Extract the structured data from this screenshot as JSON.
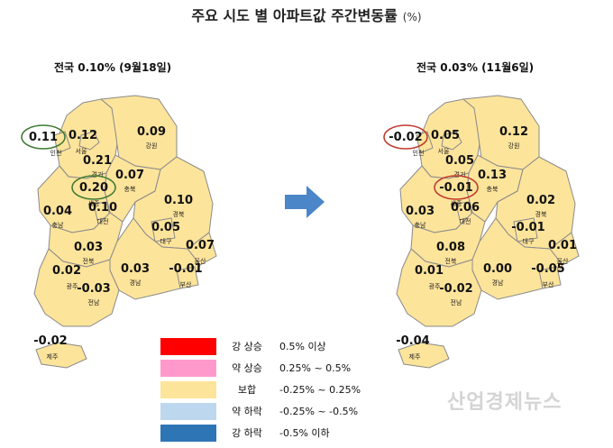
{
  "title": "주요 시도 별 아파트값 주간변동률",
  "title_unit": "(%)",
  "left_map": {
    "subtitle": "전국 0.10% (9월18일)",
    "regions": [
      {
        "region": "인천",
        "value": "0.11",
        "highlight": "green"
      },
      {
        "region": "서울",
        "value": "0.12"
      },
      {
        "region": "경기",
        "value": "0.21"
      },
      {
        "region": "강원",
        "value": "0.09"
      },
      {
        "region": "충북",
        "value": "0.07"
      },
      {
        "region": "세종",
        "value": "0.20",
        "highlight": "green"
      },
      {
        "region": "충남",
        "value": "0.04"
      },
      {
        "region": "대전",
        "value": "0.10"
      },
      {
        "region": "경북",
        "value": "0.10"
      },
      {
        "region": "대구",
        "value": "0.05"
      },
      {
        "region": "울산",
        "value": "0.07"
      },
      {
        "region": "전북",
        "value": "0.03"
      },
      {
        "region": "경남",
        "value": "0.03"
      },
      {
        "region": "부산",
        "value": "-0.01"
      },
      {
        "region": "광주",
        "value": "0.02"
      },
      {
        "region": "전남",
        "value": "-0.03"
      },
      {
        "region": "제주",
        "value": "-0.02"
      }
    ]
  },
  "right_map": {
    "subtitle": "전국 0.03% (11월6일)",
    "regions": [
      {
        "region": "인천",
        "value": "-0.02",
        "highlight": "red"
      },
      {
        "region": "서울",
        "value": "0.05"
      },
      {
        "region": "경기",
        "value": "0.05"
      },
      {
        "region": "강원",
        "value": "0.12"
      },
      {
        "region": "충북",
        "value": "0.13"
      },
      {
        "region": "세종",
        "value": "-0.01",
        "highlight": "red"
      },
      {
        "region": "충남",
        "value": "0.03"
      },
      {
        "region": "대전",
        "value": "0.06"
      },
      {
        "region": "경북",
        "value": "0.02"
      },
      {
        "region": "대구",
        "value": "-0.01"
      },
      {
        "region": "울산",
        "value": "0.01"
      },
      {
        "region": "전북",
        "value": "0.08"
      },
      {
        "region": "경남",
        "value": "0.00"
      },
      {
        "region": "부산",
        "value": "-0.05"
      },
      {
        "region": "광주",
        "value": "0.01"
      },
      {
        "region": "전남",
        "value": "-0.02"
      },
      {
        "region": "제주",
        "value": "-0.04"
      }
    ]
  },
  "legend": [
    {
      "label": "강 상승",
      "range": "0.5% 이상",
      "color": "#ff0000"
    },
    {
      "label": "약 상승",
      "range": "0.25% ~ 0.5%",
      "color": "#ff99cc"
    },
    {
      "label": "보합",
      "range": "-0.25% ~ 0.25%",
      "color": "#fde49b"
    },
    {
      "label": "약 하락",
      "range": "-0.25% ~ -0.5%",
      "color": "#bdd7ee"
    },
    {
      "label": "강 하락",
      "range": "-0.5% 이하",
      "color": "#2e75b6"
    }
  ],
  "colors": {
    "map_fill": "#fde49b",
    "map_border": "#8a8a8a",
    "arrow": "#4a86c8",
    "highlight_green": "#3d7a32",
    "highlight_red": "#c0392b"
  },
  "watermark": "산업경제뉴스"
}
